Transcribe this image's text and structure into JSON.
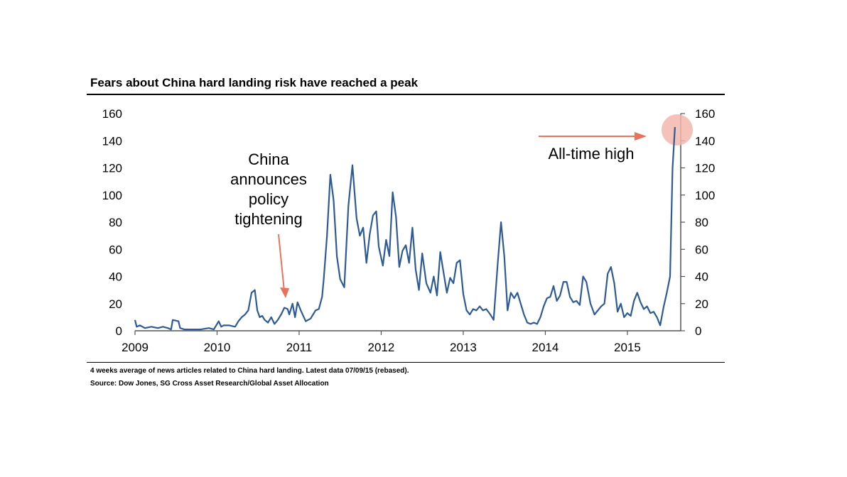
{
  "title": "Fears about China hard landing risk have reached a peak",
  "footnotes": {
    "note": "4 weeks average of news articles related to China hard landing. Latest data 07/09/15 (rebased).",
    "source": "Source: Dow Jones, SG Cross Asset Research/Global Asset Allocation"
  },
  "colors": {
    "series": "#2e5b96",
    "annotation": "#e8735a",
    "highlight": "#f2b7ad"
  },
  "chart_data": {
    "type": "line",
    "title": "Fears about China hard landing risk have reached a peak",
    "xlabel": "",
    "ylabel": "",
    "xlim": [
      2009.0,
      2015.65
    ],
    "ylim": [
      0,
      160
    ],
    "y_ticks": [
      "0",
      "20",
      "40",
      "60",
      "80",
      "100",
      "120",
      "140",
      "160"
    ],
    "x_ticks": [
      "2009",
      "2010",
      "2011",
      "2012",
      "2013",
      "2014",
      "2015"
    ],
    "grid": false,
    "legend": "none",
    "series": [
      {
        "name": "4-week average of China hard landing news articles",
        "x": [
          2009.0,
          2009.02,
          2009.06,
          2009.12,
          2009.2,
          2009.28,
          2009.34,
          2009.4,
          2009.44,
          2009.46,
          2009.53,
          2009.55,
          2009.6,
          2009.7,
          2009.8,
          2009.9,
          2009.96,
          2010.02,
          2010.05,
          2010.08,
          2010.15,
          2010.22,
          2010.26,
          2010.3,
          2010.34,
          2010.38,
          2010.42,
          2010.46,
          2010.49,
          2010.52,
          2010.55,
          2010.58,
          2010.62,
          2010.66,
          2010.7,
          2010.74,
          2010.78,
          2010.82,
          2010.86,
          2010.88,
          2010.92,
          2010.95,
          2010.98,
          2011.02,
          2011.08,
          2011.14,
          2011.2,
          2011.24,
          2011.28,
          2011.3,
          2011.34,
          2011.38,
          2011.42,
          2011.46,
          2011.5,
          2011.55,
          2011.6,
          2011.65,
          2011.7,
          2011.74,
          2011.78,
          2011.82,
          2011.86,
          2011.9,
          2011.94,
          2011.97,
          2012.02,
          2012.06,
          2012.1,
          2012.14,
          2012.18,
          2012.22,
          2012.26,
          2012.3,
          2012.34,
          2012.38,
          2012.42,
          2012.46,
          2012.5,
          2012.55,
          2012.6,
          2012.64,
          2012.68,
          2012.72,
          2012.76,
          2012.8,
          2012.84,
          2012.88,
          2012.92,
          2012.96,
          2013.0,
          2013.04,
          2013.08,
          2013.12,
          2013.16,
          2013.2,
          2013.24,
          2013.28,
          2013.33,
          2013.37,
          2013.42,
          2013.46,
          2013.5,
          2013.54,
          2013.58,
          2013.62,
          2013.66,
          2013.7,
          2013.74,
          2013.78,
          2013.82,
          2013.86,
          2013.9,
          2013.94,
          2013.98,
          2014.02,
          2014.06,
          2014.1,
          2014.14,
          2014.18,
          2014.22,
          2014.26,
          2014.3,
          2014.34,
          2014.38,
          2014.42,
          2014.46,
          2014.5,
          2014.55,
          2014.6,
          2014.64,
          2014.68,
          2014.72,
          2014.76,
          2014.8,
          2014.84,
          2014.88,
          2014.92,
          2014.96,
          2015.0,
          2015.04,
          2015.08,
          2015.12,
          2015.16,
          2015.2,
          2015.24,
          2015.28,
          2015.32,
          2015.36,
          2015.4,
          2015.44,
          2015.48,
          2015.52,
          2015.55,
          2015.58
        ],
        "y": [
          8,
          3,
          4,
          2,
          3,
          2,
          3,
          2,
          1,
          8,
          7,
          2,
          1,
          1,
          1,
          2,
          1,
          7,
          3,
          4,
          4,
          3,
          7,
          10,
          12,
          15,
          28,
          30,
          15,
          10,
          11,
          8,
          6,
          10,
          5,
          8,
          12,
          17,
          16,
          12,
          20,
          10,
          21,
          15,
          7,
          9,
          15,
          16,
          25,
          38,
          70,
          115,
          96,
          55,
          38,
          32,
          92,
          122,
          83,
          70,
          76,
          50,
          71,
          85,
          88,
          62,
          48,
          67,
          55,
          102,
          84,
          47,
          59,
          63,
          50,
          76,
          45,
          30,
          57,
          35,
          28,
          40,
          26,
          58,
          43,
          28,
          39,
          35,
          50,
          52,
          27,
          15,
          12,
          16,
          15,
          18,
          15,
          16,
          12,
          8,
          50,
          80,
          55,
          15,
          28,
          24,
          28,
          20,
          12,
          6,
          5,
          6,
          5,
          10,
          18,
          24,
          25,
          33,
          22,
          26,
          36,
          36,
          25,
          21,
          22,
          19,
          40,
          36,
          20,
          12,
          15,
          18,
          20,
          42,
          47,
          35,
          14,
          20,
          10,
          13,
          11,
          22,
          28,
          21,
          16,
          18,
          13,
          14,
          10,
          4,
          17,
          28,
          40,
          120,
          150
        ]
      }
    ],
    "annotations": [
      {
        "text_lines": [
          "China",
          "announces",
          "policy",
          "tightening"
        ],
        "arrow_direction": "down",
        "points_to_x": 2010.85
      },
      {
        "text": "All-time high",
        "arrow_direction": "right",
        "points_to_x": 2015.55
      }
    ]
  }
}
